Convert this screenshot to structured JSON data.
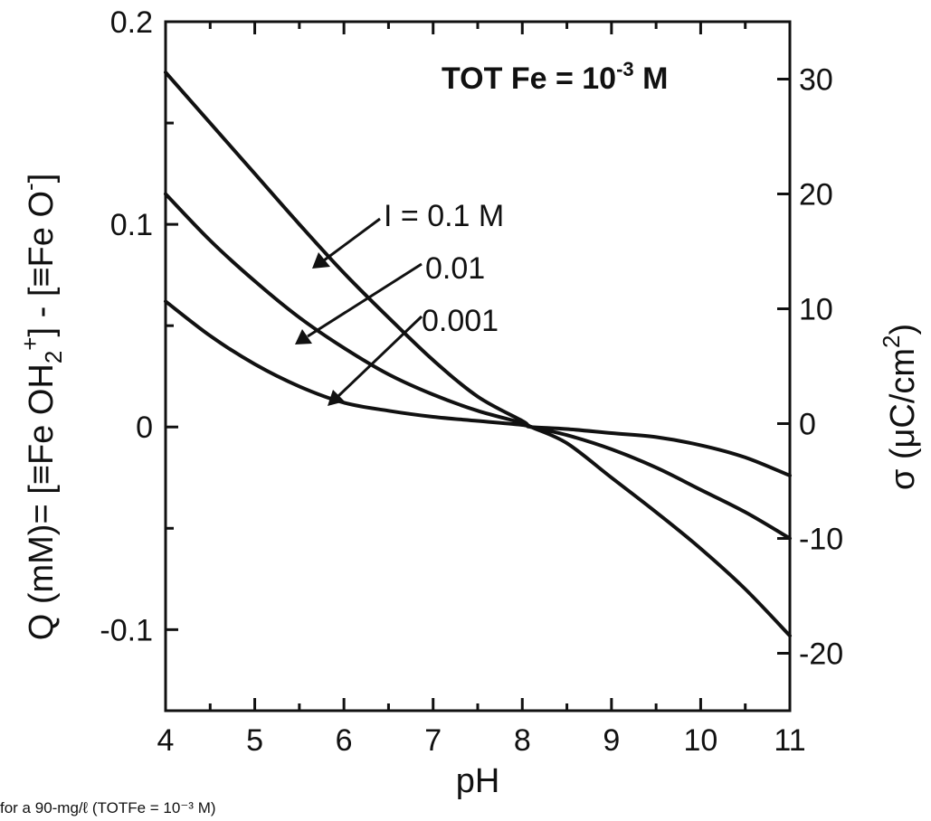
{
  "chart_data": {
    "type": "line",
    "xlabel": "pH",
    "ylabel_left": {
      "main": "Q  (mM)= [≡Fe OH",
      "sub1": "2",
      "sup1": "+",
      "mid": "] - [≡Fe O",
      "sup2": "-",
      "end": "]"
    },
    "ylabel_right": {
      "main": "σ  (μC/cm",
      "sup": "2",
      "end": ")"
    },
    "xlim": [
      4,
      11
    ],
    "ylim_left": [
      -0.14,
      0.2
    ],
    "ylim_right": [
      -25,
      35
    ],
    "x_ticks": [
      4,
      5,
      6,
      7,
      8,
      9,
      10,
      11
    ],
    "x_tick_labels": [
      "4",
      "5",
      "6",
      "7",
      "8",
      "9",
      "10",
      "11"
    ],
    "y_left_ticks": [
      0.2,
      0.1,
      0,
      -0.1
    ],
    "y_left_tick_labels": [
      "0.2",
      "0.1",
      "0",
      "-0.1"
    ],
    "y_right_ticks": [
      30,
      20,
      10,
      0,
      -10,
      -20
    ],
    "y_right_tick_labels": [
      "30",
      "20",
      "10",
      "0",
      "-10",
      "-20"
    ],
    "series": [
      {
        "name": "I = 0.1 M",
        "x": [
          4,
          4.5,
          5,
          5.5,
          6,
          6.5,
          7,
          7.5,
          8,
          8.1,
          8.5,
          9,
          9.5,
          10,
          10.5,
          11
        ],
        "y": [
          0.175,
          0.15,
          0.125,
          0.1,
          0.076,
          0.054,
          0.033,
          0.015,
          0.003,
          0.0,
          -0.008,
          -0.025,
          -0.042,
          -0.06,
          -0.08,
          -0.103
        ]
      },
      {
        "name": "0.01",
        "x": [
          4,
          4.5,
          5,
          5.5,
          6,
          6.5,
          7,
          7.5,
          8,
          8.1,
          8.5,
          9,
          9.5,
          10,
          10.5,
          11
        ],
        "y": [
          0.115,
          0.092,
          0.072,
          0.054,
          0.039,
          0.026,
          0.016,
          0.008,
          0.002,
          0.0,
          -0.004,
          -0.011,
          -0.02,
          -0.031,
          -0.042,
          -0.055
        ]
      },
      {
        "name": "0.001",
        "x": [
          4,
          4.5,
          5,
          5.5,
          6,
          6.5,
          7,
          7.5,
          8,
          8.1,
          8.5,
          9,
          9.5,
          10,
          10.5,
          11
        ],
        "y": [
          0.062,
          0.045,
          0.031,
          0.02,
          0.012,
          0.008,
          0.005,
          0.003,
          0.001,
          0.0,
          -0.001,
          -0.003,
          -0.005,
          -0.009,
          -0.015,
          -0.024
        ]
      }
    ],
    "annotations": {
      "tot_fe": {
        "main": "TOT Fe = 10",
        "sup": "-3",
        "end": " M"
      },
      "label_i01": "I = 0.1 M",
      "label_001": "0.01",
      "label_0001": "0.001"
    },
    "caption": "for a 90-mg/ℓ (TOTFe = 10⁻³ M)"
  }
}
